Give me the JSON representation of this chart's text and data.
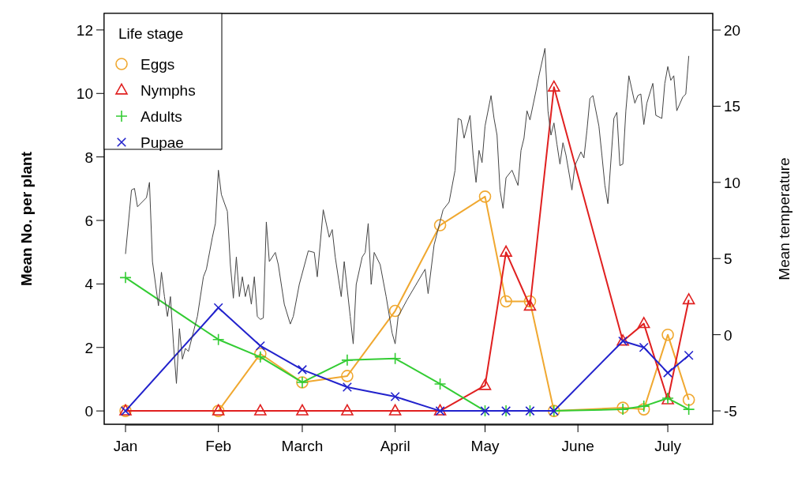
{
  "chart_data": {
    "type": "line",
    "xlabel": null,
    "ylabel": "Mean No. per plant",
    "y2label": "Mean temperature",
    "legend_title": "Life stage",
    "legend": "top left",
    "grid": false,
    "xlim": [
      "--01-01",
      "--07-16"
    ],
    "xticks": [
      {
        "value": "--01-01",
        "label": "Jan"
      },
      {
        "value": "--02-01",
        "label": "Feb"
      },
      {
        "value": "--03-01",
        "label": "March"
      },
      {
        "value": "--04-01",
        "label": "April"
      },
      {
        "value": "--05-01",
        "label": "May"
      },
      {
        "value": "--06-01",
        "label": "June"
      },
      {
        "value": "--07-01",
        "label": "July"
      }
    ],
    "ylim": [
      -0.42,
      12.52
    ],
    "yticks": [
      0,
      2,
      4,
      6,
      8,
      10,
      12
    ],
    "y2lim": [
      -5.88,
      21.09
    ],
    "y2ticks": [
      -5,
      0,
      5,
      10,
      15,
      20
    ],
    "x": [
      "--01-01",
      "--02-01",
      "--02-15",
      "--03-01",
      "--03-16",
      "--04-01",
      "--04-16",
      "--05-01",
      "--05-08",
      "--05-16",
      "--05-24",
      "--06-16",
      "--06-23",
      "--07-01",
      "--07-08"
    ],
    "series": [
      {
        "name": "Eggs",
        "color": "#f0a830",
        "marker": "circle",
        "values": [
          0,
          0,
          1.8,
          0.9,
          1.1,
          3.15,
          5.85,
          6.75,
          3.45,
          3.45,
          0,
          0.1,
          0.05,
          2.4,
          0.35
        ]
      },
      {
        "name": "Nymphs",
        "color": "#e02020",
        "marker": "triangle",
        "values": [
          0,
          0,
          0,
          0,
          0,
          0,
          0,
          0.8,
          5.0,
          3.3,
          10.2,
          2.2,
          2.75,
          0.35,
          3.5
        ]
      },
      {
        "name": "Adults",
        "color": "#33cc33",
        "marker": "plus",
        "values": [
          4.2,
          2.25,
          1.7,
          0.9,
          1.6,
          1.65,
          0.85,
          0,
          0,
          0,
          0,
          0.05,
          0.15,
          0.4,
          0.05
        ]
      },
      {
        "name": "Pupae",
        "color": "#2222cc",
        "marker": "cross",
        "values": [
          0,
          3.25,
          2.05,
          1.3,
          0.75,
          0.45,
          0,
          0,
          0,
          0,
          0,
          2.2,
          2.0,
          1.2,
          1.75
        ]
      },
      {
        "color": "#444444",
        "axis": "y2",
        "marker": "none",
        "x": [
          "--01-01",
          "--01-03",
          "--01-04",
          "--01-05",
          "--01-08",
          "--01-09",
          "--01-10",
          "--01-12",
          "--01-13",
          "--01-14",
          "--01-15",
          "--01-16",
          "--01-17",
          "--01-18",
          "--01-19",
          "--01-20",
          "--01-21",
          "--01-22",
          "--01-25",
          "--01-27",
          "--01-28",
          "--01-30",
          "--01-31",
          "--02-01",
          "--02-02",
          "--02-04",
          "--02-05",
          "--02-06",
          "--02-07",
          "--02-08",
          "--02-09",
          "--02-10",
          "--02-11",
          "--02-12",
          "--02-13",
          "--02-14",
          "--02-15",
          "--02-16",
          "--02-17",
          "--02-18",
          "--02-20",
          "--02-21",
          "--02-23",
          "--02-25",
          "--02-26",
          "--02-28",
          "--03-03",
          "--03-05",
          "--03-06",
          "--03-08",
          "--03-10",
          "--03-11",
          "--03-12",
          "--03-14",
          "--03-15",
          "--03-17",
          "--03-18",
          "--03-19",
          "--03-21",
          "--03-22",
          "--03-23",
          "--03-24",
          "--03-25",
          "--03-27",
          "--03-29",
          "--03-31",
          "--04-01",
          "--04-02",
          "--04-05",
          "--04-08",
          "--04-11",
          "--04-12",
          "--04-14",
          "--04-17",
          "--04-19",
          "--04-21",
          "--04-22",
          "--04-23",
          "--04-24",
          "--04-26",
          "--04-27",
          "--04-28",
          "--04-29",
          "--04-30",
          "--05-01",
          "--05-03",
          "--05-04",
          "--05-05",
          "--05-06",
          "--05-07",
          "--05-08",
          "--05-10",
          "--05-12",
          "--05-13",
          "--05-14",
          "--05-15",
          "--05-16",
          "--05-18",
          "--05-19",
          "--05-21",
          "--05-22",
          "--05-23",
          "--05-24",
          "--05-25",
          "--05-26",
          "--05-27",
          "--05-28",
          "--05-30",
          "--05-31",
          "--06-02",
          "--06-03",
          "--06-04",
          "--06-05",
          "--06-06",
          "--06-08",
          "--06-09",
          "--06-10",
          "--06-11",
          "--06-13",
          "--06-14",
          "--06-15",
          "--06-16",
          "--06-17",
          "--06-18",
          "--06-20",
          "--06-21",
          "--06-22",
          "--06-23",
          "--06-24",
          "--06-26",
          "--06-27",
          "--06-29",
          "--06-30",
          "--07-01",
          "--07-02",
          "--07-03",
          "--07-04",
          "--07-06",
          "--07-07",
          "--07-08"
        ],
        "values": [
          5.3,
          9.5,
          9.6,
          8.4,
          9.0,
          10.0,
          4.8,
          1.9,
          4.1,
          2.5,
          1.2,
          2.5,
          -0.6,
          -3.2,
          0.4,
          -1.6,
          -0.9,
          -1.1,
          1.2,
          3.8,
          4.3,
          6.4,
          7.3,
          10.8,
          9.2,
          8.1,
          4.6,
          2.4,
          5.1,
          2.5,
          3.8,
          2.5,
          3.3,
          2.0,
          3.8,
          1.2,
          1.0,
          1.1,
          7.4,
          4.8,
          5.4,
          4.6,
          2.0,
          0.7,
          1.2,
          3.3,
          5.5,
          5.4,
          3.8,
          8.2,
          6.4,
          6.9,
          5.1,
          2.5,
          4.8,
          1.2,
          -0.6,
          3.3,
          5.1,
          5.4,
          7.3,
          3.3,
          5.4,
          4.6,
          2.5,
          0.1,
          -0.6,
          1.2,
          2.3,
          3.3,
          4.3,
          2.7,
          5.9,
          8.2,
          8.7,
          10.8,
          14.2,
          14.1,
          12.9,
          14.4,
          11.8,
          10.0,
          12.1,
          11.3,
          13.7,
          15.7,
          14.2,
          13.1,
          9.5,
          8.3,
          10.3,
          10.8,
          9.8,
          12.1,
          12.9,
          14.7,
          14.1,
          16.0,
          17.0,
          18.8,
          14.7,
          13.1,
          13.9,
          12.5,
          11.2,
          12.6,
          11.8,
          9.5,
          11.1,
          12.0,
          11.6,
          13.4,
          15.5,
          15.7,
          13.7,
          11.8,
          9.8,
          8.6,
          14.2,
          14.6,
          11.1,
          11.2,
          14.7,
          17.0,
          15.2,
          15.7,
          15.8,
          13.8,
          15.2,
          16.5,
          14.4,
          14.2,
          16.5,
          17.6,
          16.7,
          17.0,
          14.7,
          15.6,
          15.8,
          18.3
        ]
      }
    ]
  }
}
